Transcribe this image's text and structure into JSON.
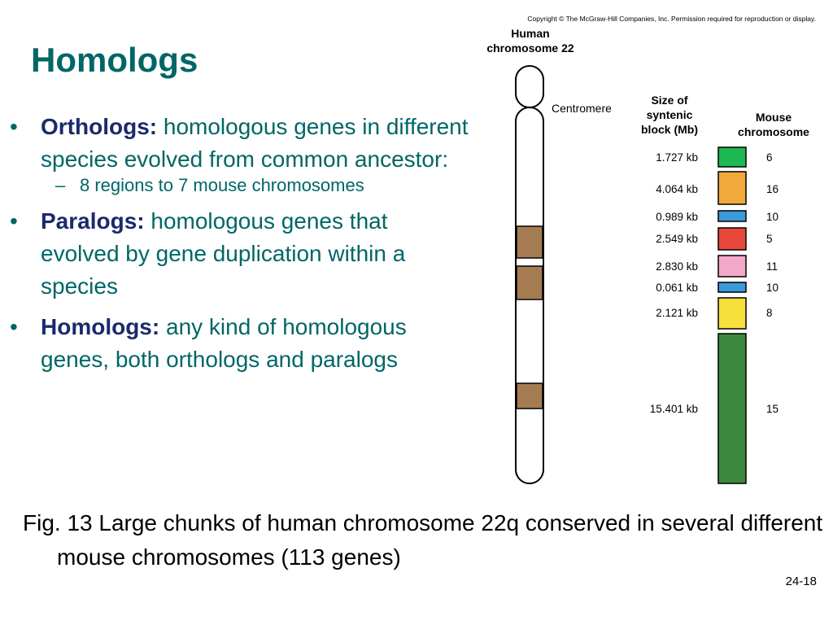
{
  "slide": {
    "title": "Homologs",
    "number": "24-18"
  },
  "bullets": [
    {
      "term": "Orthologs:",
      "text": " homologous genes in different species evolved from common ancestor:",
      "sub": "8 regions to 7 mouse chromosomes"
    },
    {
      "term": "Paralogs:",
      "text": " homologous genes that evolved by gene duplication within a species"
    },
    {
      "term": "Homologs:",
      "text": " any kind of homologous genes, both orthologs and paralogs"
    }
  ],
  "figure": {
    "copyright": "Copyright © The McGraw-Hill Companies, Inc. Permission required for reproduction or display.",
    "chromosome_title_line1": "Human",
    "chromosome_title_line2": "chromosome 22",
    "centromere_label": "Centromere",
    "size_header_line1": "Size of",
    "size_header_line2": "syntenic",
    "size_header_line3": "block (Mb)",
    "mouse_header_line1": "Mouse",
    "mouse_header_line2": "chromosome",
    "chromosome_bands": [
      {
        "label": "band-1",
        "color": "#a57c52"
      },
      {
        "label": "band-2",
        "color": "#a57c52"
      },
      {
        "label": "band-3",
        "color": "#a57c52"
      }
    ],
    "blocks": [
      {
        "size": "1.727 kb",
        "mouse_chromosome": "6",
        "color": "#1db954"
      },
      {
        "size": "4.064 kb",
        "mouse_chromosome": "16",
        "color": "#f2a93b"
      },
      {
        "size": "0.989 kb",
        "mouse_chromosome": "10",
        "color": "#3b9ad9"
      },
      {
        "size": "2.549 kb",
        "mouse_chromosome": "5",
        "color": "#e8473a"
      },
      {
        "size": "2.830 kb",
        "mouse_chromosome": "11",
        "color": "#f4a9c8"
      },
      {
        "size": "0.061 kb",
        "mouse_chromosome": "10",
        "color": "#3b9ad9"
      },
      {
        "size": "2.121 kb",
        "mouse_chromosome": "8",
        "color": "#f7e03c"
      },
      {
        "size": "15.401 kb",
        "mouse_chromosome": "15",
        "color": "#3d8a3f"
      }
    ]
  },
  "caption": "Fig. 13 Large chunks of human chromosome 22q conserved in several different mouse chromosomes (113 genes)"
}
